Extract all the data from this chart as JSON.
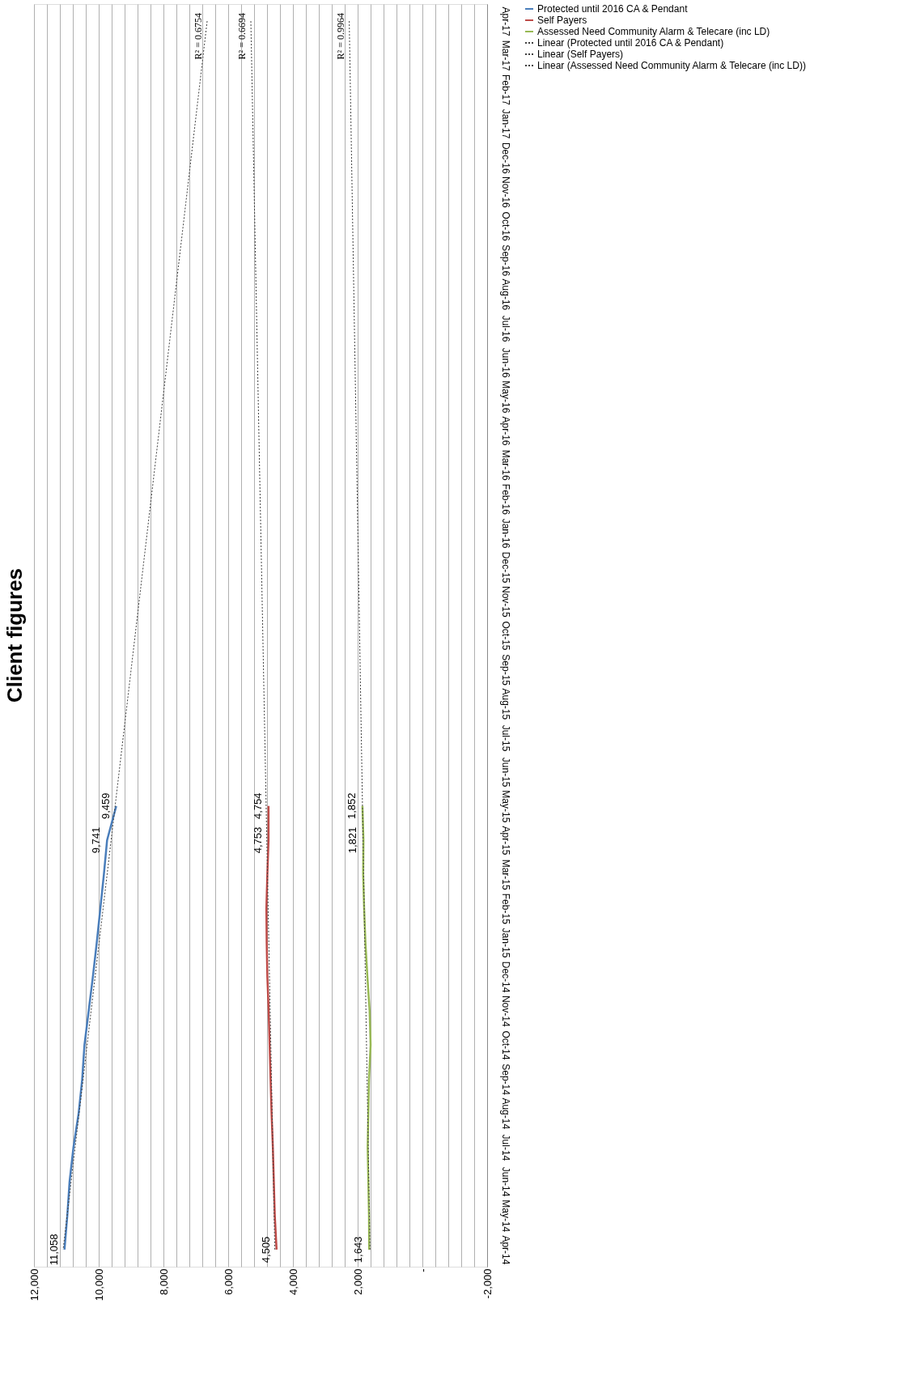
{
  "chart_data": {
    "type": "line",
    "title": "Client figures",
    "orientation": "horizontal",
    "categories": [
      "Apr-17",
      "Mar-17",
      "Feb-17",
      "Jan-17",
      "Dec-16",
      "Nov-16",
      "Oct-16",
      "Sep-16",
      "Aug-16",
      "Jul-16",
      "Jun-16",
      "May-16",
      "Apr-16",
      "Mar-16",
      "Feb-16",
      "Jan-16",
      "Dec-15",
      "Nov-15",
      "Oct-15",
      "Sep-15",
      "Aug-15",
      "Jul-15",
      "Jun-15",
      "May-15",
      "Apr-15",
      "Mar-15",
      "Feb-15",
      "Jan-15",
      "Dec-14",
      "Nov-14",
      "Oct-14",
      "Sep-14",
      "Aug-14",
      "Jul-14",
      "Jun-14",
      "May-14",
      "Apr-14"
    ],
    "series": [
      {
        "name": "Protected until 2016 CA & Pendant",
        "color": "#4a7ebb",
        "line_style": "solid",
        "values": [
          null,
          null,
          null,
          null,
          null,
          null,
          null,
          null,
          null,
          null,
          null,
          null,
          null,
          null,
          null,
          null,
          null,
          null,
          null,
          null,
          null,
          null,
          null,
          9459,
          9741,
          9840,
          9950,
          10060,
          10180,
          10310,
          10440,
          10510,
          10620,
          10780,
          10900,
          10970,
          11058
        ],
        "value_labels": [
          null,
          null,
          null,
          null,
          null,
          null,
          null,
          null,
          null,
          null,
          null,
          null,
          null,
          null,
          null,
          null,
          null,
          null,
          null,
          null,
          null,
          null,
          null,
          "9,459",
          "9,741",
          null,
          null,
          null,
          null,
          null,
          null,
          null,
          null,
          null,
          null,
          null,
          "11,058"
        ]
      },
      {
        "name": "Self Payers",
        "color": "#be4b48",
        "line_style": "solid",
        "values": [
          null,
          null,
          null,
          null,
          null,
          null,
          null,
          null,
          null,
          null,
          null,
          null,
          null,
          null,
          null,
          null,
          null,
          null,
          null,
          null,
          null,
          null,
          null,
          4754,
          4753,
          4790,
          4820,
          4810,
          4790,
          4750,
          4720,
          4690,
          4660,
          4620,
          4590,
          4560,
          4505
        ],
        "value_labels": [
          null,
          null,
          null,
          null,
          null,
          null,
          null,
          null,
          null,
          null,
          null,
          null,
          null,
          null,
          null,
          null,
          null,
          null,
          null,
          null,
          null,
          null,
          null,
          "4,754",
          "4,753",
          null,
          null,
          null,
          null,
          null,
          null,
          null,
          null,
          null,
          null,
          null,
          "4,505"
        ]
      },
      {
        "name": "Assessed Need Community Alarm & Telecare (inc LD)",
        "color": "#98b954",
        "line_style": "solid",
        "values": [
          null,
          null,
          null,
          null,
          null,
          null,
          null,
          null,
          null,
          null,
          null,
          null,
          null,
          null,
          null,
          null,
          null,
          null,
          null,
          null,
          null,
          null,
          null,
          1852,
          1821,
          1830,
          1800,
          1760,
          1700,
          1630,
          1600,
          1650,
          1670,
          1690,
          1670,
          1650,
          1643
        ],
        "value_labels": [
          null,
          null,
          null,
          null,
          null,
          null,
          null,
          null,
          null,
          null,
          null,
          null,
          null,
          null,
          null,
          null,
          null,
          null,
          null,
          null,
          null,
          null,
          null,
          "1,852",
          "1,821",
          null,
          null,
          null,
          null,
          null,
          null,
          null,
          null,
          null,
          null,
          null,
          "1,643"
        ]
      },
      {
        "name": "Linear (Protected until 2016 CA & Pendant)",
        "color": "#404040",
        "line_style": "dotted",
        "x": [
          "Apr-17",
          "Apr-14"
        ],
        "values": [
          6650,
          11100
        ]
      },
      {
        "name": "Linear (Self Payers)",
        "color": "#404040",
        "line_style": "dotted",
        "x": [
          "Apr-17",
          "Apr-14"
        ],
        "values": [
          5300,
          4560
        ]
      },
      {
        "name": "Linear (Assessed Need Community Alarm & Telecare (inc LD))",
        "color": "#404040",
        "line_style": "dotted",
        "x": [
          "Apr-17",
          "Apr-14"
        ],
        "values": [
          2260,
          1620
        ]
      }
    ],
    "xlim": [
      12000,
      -2000
    ],
    "xticks": [
      {
        "value": 12000,
        "label": "12,000"
      },
      {
        "value": 11600,
        "label": null
      },
      {
        "value": 11200,
        "label": null
      },
      {
        "value": 10800,
        "label": null
      },
      {
        "value": 10400,
        "label": null
      },
      {
        "value": 10000,
        "label": "10,000"
      },
      {
        "value": 9600,
        "label": null
      },
      {
        "value": 9200,
        "label": null
      },
      {
        "value": 8800,
        "label": null
      },
      {
        "value": 8400,
        "label": null
      },
      {
        "value": 8000,
        "label": "8,000"
      },
      {
        "value": 7600,
        "label": null
      },
      {
        "value": 7200,
        "label": null
      },
      {
        "value": 6800,
        "label": null
      },
      {
        "value": 6400,
        "label": null
      },
      {
        "value": 6000,
        "label": "6,000"
      },
      {
        "value": 5600,
        "label": null
      },
      {
        "value": 5200,
        "label": null
      },
      {
        "value": 4800,
        "label": null
      },
      {
        "value": 4400,
        "label": null
      },
      {
        "value": 4000,
        "label": "4,000"
      },
      {
        "value": 3600,
        "label": null
      },
      {
        "value": 3200,
        "label": null
      },
      {
        "value": 2800,
        "label": null
      },
      {
        "value": 2400,
        "label": null
      },
      {
        "value": 2000,
        "label": "2,000"
      },
      {
        "value": 1600,
        "label": null
      },
      {
        "value": 1200,
        "label": null
      },
      {
        "value": 800,
        "label": null
      },
      {
        "value": 400,
        "label": null
      },
      {
        "value": 0,
        "label": "-"
      },
      {
        "value": -400,
        "label": null
      },
      {
        "value": -800,
        "label": null
      },
      {
        "value": -1200,
        "label": null
      },
      {
        "value": -1600,
        "label": null
      },
      {
        "value": -2000,
        "label": "-2,000"
      }
    ],
    "grid": "x",
    "legend": "right",
    "annotations": [
      "R² = 0.6754",
      "R² = 0.6694",
      "R² = 0.9964"
    ]
  }
}
